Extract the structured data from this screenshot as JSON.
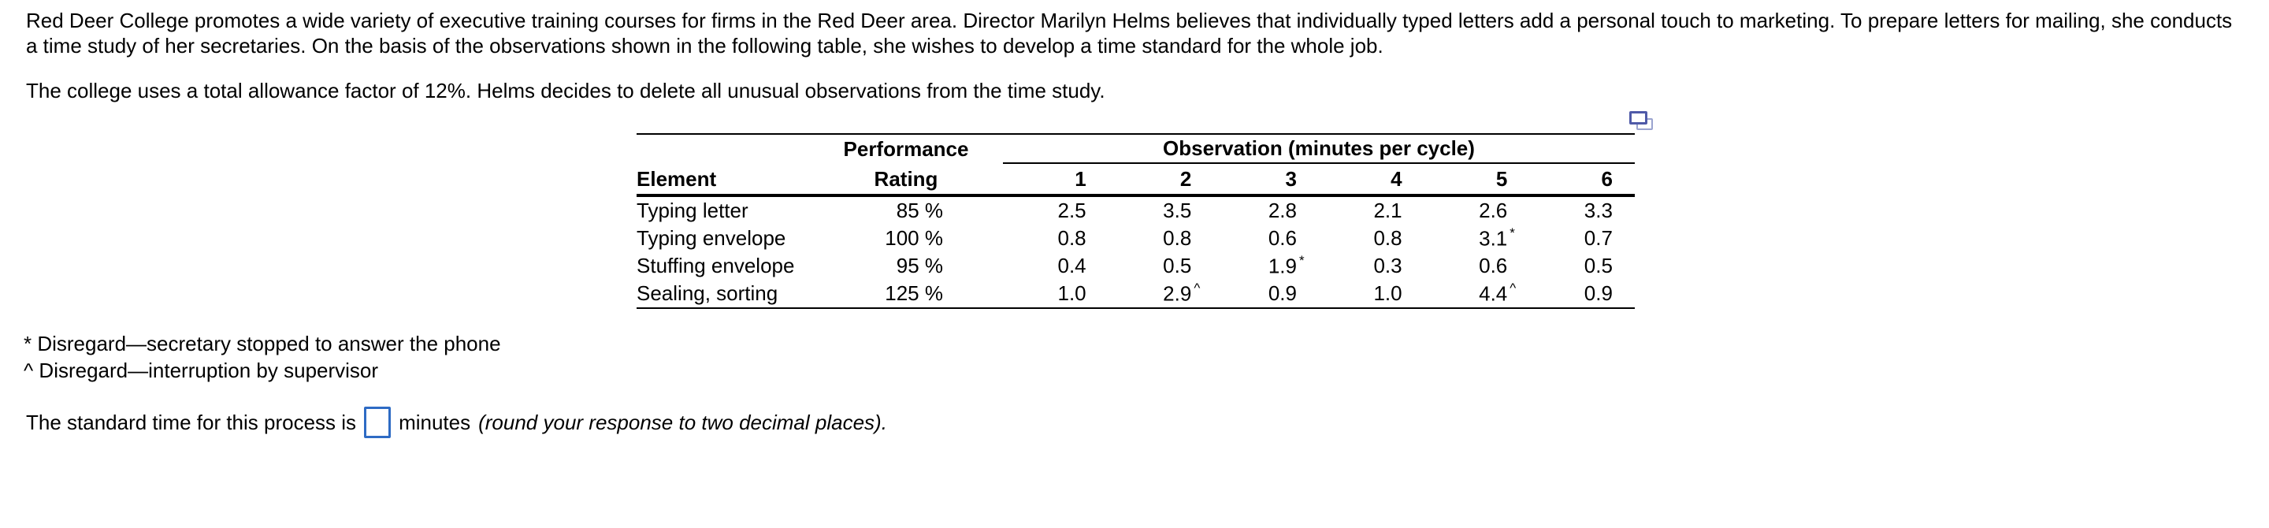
{
  "page": {
    "intro_lines": [
      "Red Deer College promotes a wide variety of executive training courses for firms in the Red Deer area. Director Marilyn Helms believes that individually typed letters add a personal touch to marketing. To prepare letters for mailing, she conducts",
      "a time study of her secretaries. On the basis of the observations shown in the following table, she wishes to develop a time standard for the whole job."
    ],
    "allowance_line": "The college uses a total allowance factor of 12%. Helms decides to delete all unusual observations from the time study.",
    "footnotes": [
      "* Disregard—secretary stopped to answer the phone",
      "^ Disregard—interruption by supervisor"
    ],
    "answer": {
      "prefix": "The standard time for this process is",
      "input_value": "",
      "suffix": "minutes",
      "hint": "(round your response to two decimal places)."
    }
  },
  "table": {
    "copy_icon": "copy-table-icon",
    "col_group_headers": {
      "performance": "Performance",
      "observation": "Observation (minutes per cycle)"
    },
    "col_headers": {
      "element": "Element",
      "rating": "Rating",
      "observations": [
        "1",
        "2",
        "3",
        "4",
        "5",
        "6"
      ]
    },
    "rows": [
      {
        "element": "Typing letter",
        "rating": "85 %",
        "obs": [
          {
            "v": "2.5"
          },
          {
            "v": "3.5"
          },
          {
            "v": "2.8"
          },
          {
            "v": "2.1"
          },
          {
            "v": "2.6"
          },
          {
            "v": "3.3"
          }
        ]
      },
      {
        "element": "Typing envelope",
        "rating": "100 %",
        "obs": [
          {
            "v": "0.8"
          },
          {
            "v": "0.8"
          },
          {
            "v": "0.6"
          },
          {
            "v": "0.8"
          },
          {
            "v": "3.1",
            "sup": "*"
          },
          {
            "v": "0.7"
          }
        ]
      },
      {
        "element": "Stuffing envelope",
        "rating": "95 %",
        "obs": [
          {
            "v": "0.4"
          },
          {
            "v": "0.5"
          },
          {
            "v": "1.9",
            "sup": "*"
          },
          {
            "v": "0.3"
          },
          {
            "v": "0.6"
          },
          {
            "v": "0.5"
          }
        ]
      },
      {
        "element": "Sealing, sorting",
        "rating": "125 %",
        "obs": [
          {
            "v": "1.0"
          },
          {
            "v": "2.9",
            "sup": "^"
          },
          {
            "v": "0.9"
          },
          {
            "v": "1.0"
          },
          {
            "v": "4.4",
            "sup": "^"
          },
          {
            "v": "0.9"
          }
        ]
      }
    ]
  },
  "colors": {
    "text": "#000000",
    "input_border": "#2e6bc4",
    "icon_front": "#4f5aa8",
    "icon_back": "#9aa3cf"
  }
}
